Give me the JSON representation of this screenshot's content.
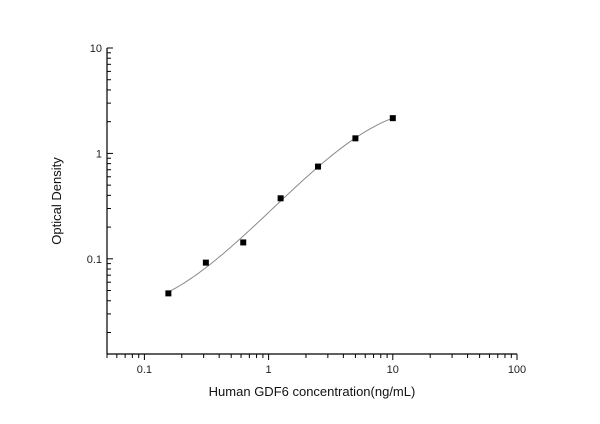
{
  "chart_data": {
    "type": "scatter",
    "title": "",
    "xlabel": "Human GDF6 concentration(ng/mL)",
    "ylabel": "Optical Density",
    "x_scale": "log",
    "y_scale": "log",
    "xlim": [
      0.05,
      100
    ],
    "ylim": [
      0.0125,
      10
    ],
    "x_ticks": [
      "0.1",
      "1",
      "10",
      "100"
    ],
    "y_ticks": [
      "0.1",
      "1",
      "10"
    ],
    "grid": false,
    "legend": null,
    "series": [
      {
        "name": "Standard points",
        "marker": "square",
        "x": [
          0.156,
          0.3125,
          0.625,
          1.25,
          2.5,
          5,
          10
        ],
        "y": [
          0.047,
          0.092,
          0.143,
          0.375,
          0.75,
          1.39,
          2.16
        ]
      },
      {
        "name": "Fitted curve",
        "style": "line",
        "color": "#8a8a8a"
      }
    ]
  },
  "colors": {
    "axis": "#000000",
    "marker": "#000000",
    "curve": "#8a8a8a",
    "background": "#ffffff"
  }
}
